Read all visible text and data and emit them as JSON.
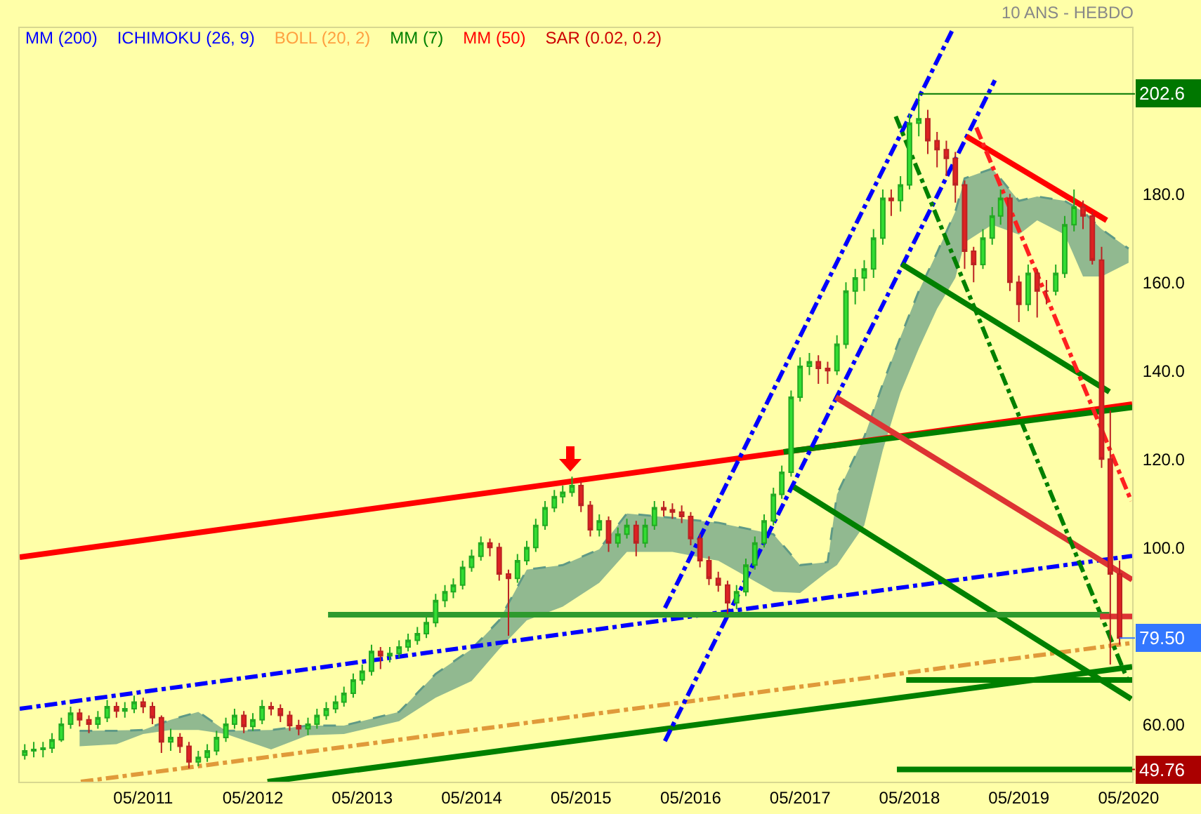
{
  "chart_data": {
    "type": "candlestick",
    "title": "10 ANS - HEBDO",
    "annotations": [
      "MM (200)",
      "ICHIMOKU (26, 9)",
      "BOLL (20, 2)",
      "MM (7)",
      "MM (50)",
      "SAR (0.02, 0.2)",
      {
        "text": "202.6",
        "x": "2018-06",
        "y": 202.6
      },
      {
        "text": "79.50",
        "x": "2020-04",
        "y": 79.5
      },
      {
        "text": "49.76",
        "x": "2020-05-13",
        "y": 49.76
      }
    ],
    "x": [
      "2010-04",
      "2010-05",
      "2010-06",
      "2010-07",
      "2010-08",
      "2010-09",
      "2010-10",
      "2010-11",
      "2010-12",
      "2011-01",
      "2011-02",
      "2011-03",
      "2011-04",
      "2011-05",
      "2011-06",
      "2011-07",
      "2011-08",
      "2011-09",
      "2011-10",
      "2011-11",
      "2011-12",
      "2012-01",
      "2012-02",
      "2012-03",
      "2012-04",
      "2012-05",
      "2012-06",
      "2012-07",
      "2012-08",
      "2012-09",
      "2012-10",
      "2012-11",
      "2012-12",
      "2013-01",
      "2013-02",
      "2013-03",
      "2013-04",
      "2013-05",
      "2013-06",
      "2013-07",
      "2013-08",
      "2013-09",
      "2013-10",
      "2013-11",
      "2013-12",
      "2014-01",
      "2014-02",
      "2014-03",
      "2014-04",
      "2014-05",
      "2014-06",
      "2014-07",
      "2014-08",
      "2014-09",
      "2014-10",
      "2014-11",
      "2014-12",
      "2015-01",
      "2015-02",
      "2015-03",
      "2015-04",
      "2015-05",
      "2015-06",
      "2015-07",
      "2015-08",
      "2015-09",
      "2015-10",
      "2015-11",
      "2015-12",
      "2016-01",
      "2016-02",
      "2016-03",
      "2016-04",
      "2016-05",
      "2016-06",
      "2016-07",
      "2016-08",
      "2016-09",
      "2016-10",
      "2016-11",
      "2016-12",
      "2017-01",
      "2017-02",
      "2017-03",
      "2017-04",
      "2017-05",
      "2017-06",
      "2017-07",
      "2017-08",
      "2017-09",
      "2017-10",
      "2017-11",
      "2017-12",
      "2018-01",
      "2018-02",
      "2018-03",
      "2018-04",
      "2018-05",
      "2018-06",
      "2018-07",
      "2018-08",
      "2018-09",
      "2018-10",
      "2018-11",
      "2018-12",
      "2019-01",
      "2019-02",
      "2019-03",
      "2019-04",
      "2019-05",
      "2019-06",
      "2019-07",
      "2019-08",
      "2019-09",
      "2019-10",
      "2019-11",
      "2019-12",
      "2020-01",
      "2020-02",
      "2020-03",
      "2020-04"
    ],
    "ohlc": [
      [
        53,
        55.5,
        52,
        54
      ],
      [
        54,
        56,
        52.5,
        54.3
      ],
      [
        54.3,
        56,
        52.5,
        54.6
      ],
      [
        54.6,
        58,
        53.5,
        56.5
      ],
      [
        56.5,
        61.5,
        56,
        60
      ],
      [
        60,
        64,
        59,
        62.5
      ],
      [
        62.5,
        63.5,
        59.5,
        61
      ],
      [
        61,
        62,
        58,
        60
      ],
      [
        60,
        63,
        59,
        61.5
      ],
      [
        61.5,
        65.5,
        60.5,
        64
      ],
      [
        64,
        65,
        61.5,
        63
      ],
      [
        63,
        65,
        61.5,
        63.5
      ],
      [
        63.5,
        66.5,
        62.5,
        65
      ],
      [
        65,
        66,
        62.5,
        64
      ],
      [
        64,
        65,
        60,
        61.5
      ],
      [
        61.5,
        62,
        53.5,
        56
      ],
      [
        56,
        59,
        54,
        57
      ],
      [
        57,
        58,
        53.5,
        55
      ],
      [
        55,
        56,
        50,
        51.5
      ],
      [
        51.5,
        54,
        50.5,
        52.5
      ],
      [
        52.5,
        55.5,
        51.5,
        54
      ],
      [
        54,
        58.5,
        53,
        57
      ],
      [
        57,
        61.5,
        56,
        60
      ],
      [
        60,
        63.5,
        59,
        62
      ],
      [
        62,
        63,
        58,
        59.5
      ],
      [
        59.5,
        62.5,
        58.5,
        61
      ],
      [
        61,
        65.5,
        60,
        64
      ],
      [
        64,
        65,
        62,
        63.5
      ],
      [
        63.5,
        64.5,
        60.5,
        62
      ],
      [
        62,
        63,
        58.5,
        59.7
      ],
      [
        59.7,
        61,
        57.5,
        59
      ],
      [
        59,
        61.5,
        57.5,
        60
      ],
      [
        60,
        63.5,
        59,
        62
      ],
      [
        62,
        65,
        61,
        63.5
      ],
      [
        63.5,
        66.5,
        62.5,
        65
      ],
      [
        65,
        68.5,
        64,
        67
      ],
      [
        67,
        71.5,
        66,
        70
      ],
      [
        70,
        73.5,
        69,
        72
      ],
      [
        72,
        78,
        71,
        76.5
      ],
      [
        76.5,
        77.5,
        72.5,
        75.5
      ],
      [
        75.5,
        77.5,
        74,
        76
      ],
      [
        76,
        79,
        75,
        77.5
      ],
      [
        77.5,
        80.5,
        76.5,
        79
      ],
      [
        79,
        82,
        78,
        80.5
      ],
      [
        80.5,
        84.5,
        79.5,
        83
      ],
      [
        83,
        89.5,
        82,
        88
      ],
      [
        88,
        91.5,
        86.5,
        90
      ],
      [
        90,
        93,
        88.5,
        91.5
      ],
      [
        91.5,
        97,
        90.5,
        95.5
      ],
      [
        95.5,
        99.5,
        94.5,
        98
      ],
      [
        98,
        102.5,
        97,
        101
      ],
      [
        101,
        102,
        98,
        100
      ],
      [
        100,
        101,
        92.5,
        94
      ],
      [
        94,
        95,
        80,
        93
      ],
      [
        93,
        98.5,
        92,
        97
      ],
      [
        97,
        101.5,
        96,
        100
      ],
      [
        100,
        106.5,
        99,
        105
      ],
      [
        105,
        110.5,
        104,
        109
      ],
      [
        109,
        113,
        108,
        111.5
      ],
      [
        111.5,
        114,
        110,
        112.5
      ],
      [
        112.5,
        116,
        111.5,
        114
      ],
      [
        114,
        115,
        108,
        109.5
      ],
      [
        109.5,
        110.5,
        102.5,
        104
      ],
      [
        104,
        107.5,
        102.5,
        106
      ],
      [
        106,
        107,
        99,
        101
      ],
      [
        101,
        104.5,
        100,
        103
      ],
      [
        103,
        106.5,
        102,
        105
      ],
      [
        105,
        106,
        98,
        101
      ],
      [
        101,
        106.5,
        100,
        105
      ],
      [
        105,
        110.5,
        104,
        109
      ],
      [
        109,
        110.5,
        107,
        108.5
      ],
      [
        108.5,
        110,
        106.5,
        108
      ],
      [
        108,
        109.5,
        105.5,
        107
      ],
      [
        107,
        108,
        100.5,
        102
      ],
      [
        102,
        103,
        95.5,
        97
      ],
      [
        97,
        98,
        91.5,
        93
      ],
      [
        93,
        94.5,
        90,
        91.5
      ],
      [
        91.5,
        92.5,
        85,
        87.5
      ],
      [
        87.5,
        91.5,
        86,
        90
      ],
      [
        90,
        97.5,
        89,
        96
      ],
      [
        96,
        102.5,
        95,
        101
      ],
      [
        101,
        107.5,
        100,
        106
      ],
      [
        106,
        113.5,
        105,
        112
      ],
      [
        112,
        118.5,
        111,
        117
      ],
      [
        117,
        135.5,
        116,
        134
      ],
      [
        134,
        143,
        133,
        141
      ],
      [
        141,
        144,
        139,
        142
      ],
      [
        142,
        143.5,
        137,
        140.5
      ],
      [
        140.5,
        142,
        137,
        140
      ],
      [
        140,
        148,
        139,
        146
      ],
      [
        146,
        160,
        145,
        158
      ],
      [
        158,
        163,
        155,
        161
      ],
      [
        161,
        165,
        158,
        163
      ],
      [
        163,
        172,
        161,
        170
      ],
      [
        170,
        181,
        168.5,
        179
      ],
      [
        179,
        181,
        175,
        178.5
      ],
      [
        178.5,
        184,
        176,
        182
      ],
      [
        182,
        198,
        181,
        196
      ],
      [
        196,
        202.6,
        193,
        197
      ],
      [
        197,
        199,
        189,
        192
      ],
      [
        192,
        194,
        186,
        190
      ],
      [
        190,
        192,
        184,
        188
      ],
      [
        188,
        189.5,
        178,
        182
      ],
      [
        182,
        183,
        163,
        167
      ],
      [
        167,
        168,
        160,
        164
      ],
      [
        164,
        172,
        163,
        170
      ],
      [
        170,
        177,
        168.5,
        175
      ],
      [
        175,
        181,
        173,
        179
      ],
      [
        179,
        180,
        158,
        160
      ],
      [
        160,
        161.5,
        151,
        155
      ],
      [
        155,
        164,
        153.5,
        162
      ],
      [
        162,
        163,
        152,
        158
      ],
      [
        158,
        160.5,
        155,
        158
      ],
      [
        158,
        164,
        157,
        162
      ],
      [
        162,
        175,
        161,
        173
      ],
      [
        173,
        181,
        171.5,
        177
      ],
      [
        177,
        178.5,
        172,
        175
      ],
      [
        175,
        176,
        164,
        165
      ],
      [
        165,
        168,
        118,
        120
      ],
      [
        120,
        131,
        73.5,
        94
      ],
      [
        94,
        97,
        78,
        79.5
      ]
    ],
    "series": [
      {
        "type": "line",
        "color": "#5f9a86",
        "line_style": "dashed",
        "x": [
          "2010-10",
          "2011-02",
          "2011-05",
          "2011-08",
          "2011-11",
          "2012-02",
          "2012-07",
          "2012-11",
          "2013-03",
          "2013-09",
          "2014-01",
          "2014-05",
          "2014-08",
          "2014-11",
          "2015-03",
          "2015-07",
          "2015-10",
          "2016-03",
          "2016-08",
          "2017-02",
          "2017-05",
          "2017-08",
          "2017-09",
          "2017-12",
          "2018-02",
          "2018-04",
          "2018-06",
          "2018-08",
          "2018-10",
          "2018-11",
          "2019-02",
          "2019-05",
          "2019-07",
          "2019-10",
          "2019-12",
          "2020-02",
          "2020-05"
        ],
        "values": [
          58.5,
          58.5,
          58.7,
          61,
          62.8,
          58.5,
          58.7,
          59.7,
          59.7,
          62.8,
          71.4,
          77,
          83.5,
          95,
          96,
          99.6,
          107.7,
          106.7,
          105.6,
          103,
          96,
          96.7,
          112,
          125,
          137,
          147.6,
          158,
          166.7,
          176,
          183.5,
          185.7,
          178.4,
          179.4,
          178.4,
          176,
          172,
          167.6
        ],
        "upper": [
          58.5,
          58.5,
          58.7,
          61,
          62.8,
          58.5,
          58.7,
          59.7,
          59.7,
          62.8,
          71.4,
          77,
          83.5,
          95,
          96,
          99.6,
          107.7,
          106.7,
          105.6,
          103,
          96,
          96.7,
          112,
          125,
          137,
          147.6,
          158,
          166.7,
          176,
          183.5,
          185.7,
          178.4,
          179.4,
          178.4,
          176,
          172,
          167.6
        ],
        "lower": [
          55,
          55.5,
          57.8,
          58.7,
          58.7,
          57.8,
          54.3,
          57.5,
          57.8,
          60.7,
          66,
          69.8,
          77,
          83.5,
          86.6,
          92,
          99,
          99,
          97,
          90,
          89.7,
          94.6,
          96,
          105,
          122,
          135,
          145,
          154,
          161,
          169,
          173,
          170.8,
          174,
          170.8,
          161.3,
          161.3,
          164.4
        ]
      },
      {
        "type": "line",
        "color": "#ff0000",
        "line_style": "solid",
        "x": [
          "2010-03-15",
          "2020-05-13"
        ],
        "values": [
          97.8,
          132.4
        ]
      },
      {
        "type": "line",
        "color": "#008000",
        "line_style": "solid",
        "x": [
          "2017-03-07",
          "2020-05-13"
        ],
        "values": [
          121.6,
          131.7
        ]
      },
      {
        "type": "line",
        "color": "#008000",
        "line_style": "solid",
        "x": [
          "2012-06-19",
          "2020-05-13"
        ],
        "values": [
          47,
          73
        ]
      },
      {
        "type": "line",
        "color": "#e09a3a",
        "line_style": "dashed",
        "x": [
          "2010-10-05",
          "2020-05-13"
        ],
        "values": [
          47,
          78.4
        ]
      },
      {
        "type": "line",
        "color": "#0000ff",
        "line_style": "dashed",
        "x": [
          "2010-03-15",
          "2020-05-13"
        ],
        "values": [
          63.5,
          98.1
        ]
      },
      {
        "type": "line",
        "color": "#0000ff",
        "line_style": "dashed",
        "x": [
          "2016-02-05",
          "2018-09-21"
        ],
        "values": [
          86.3,
          217
        ]
      },
      {
        "type": "line",
        "color": "#0000ff",
        "line_style": "dashed",
        "x": [
          "2016-02-05",
          "2019-02-10"
        ],
        "values": [
          56.2,
          205.7
        ]
      },
      {
        "type": "line",
        "color": "#008000",
        "line_style": "solid",
        "x": [
          "2018-04-05",
          "2020-02-27"
        ],
        "values": [
          164.1,
          135.2
        ]
      },
      {
        "type": "line",
        "color": "#008000",
        "line_style": "solid",
        "x": [
          "2017-04-10",
          "2020-05-10"
        ],
        "values": [
          113.7,
          65.7
        ]
      },
      {
        "type": "line",
        "color": "#ff0000",
        "line_style": "solid",
        "x": [
          "2018-11-07",
          "2020-02-18"
        ],
        "values": [
          193,
          174
        ]
      },
      {
        "type": "line",
        "color": "#dd3333",
        "line_style": "solid",
        "x": [
          "2017-08-28",
          "2020-05-13"
        ],
        "values": [
          134,
          92.7
        ]
      },
      {
        "type": "line",
        "color": "#ff2020",
        "line_style": "dashed",
        "x": [
          "2018-12-10",
          "2020-05-10"
        ],
        "values": [
          195,
          110.5
        ]
      },
      {
        "type": "line",
        "color": "#008000",
        "line_style": "dashed",
        "x": [
          "2018-03-16",
          "2020-04-25"
        ],
        "values": [
          197.5,
          70.5
        ]
      },
      {
        "type": "line",
        "color": "#2e9a2e",
        "line_style": "solid",
        "x": [
          "2013-01-07",
          "2020-02-27"
        ],
        "values": [
          84.8,
          84.8
        ]
      },
      {
        "type": "line",
        "color": "#008000",
        "line_style": "solid",
        "x": [
          "2018-04-20",
          "2020-05-13"
        ],
        "values": [
          70,
          70
        ]
      },
      {
        "type": "line",
        "color": "#008000",
        "line_style": "solid",
        "x": [
          "2018-03-20",
          "2020-05-13"
        ],
        "values": [
          49.76,
          49.76
        ]
      },
      {
        "type": "line",
        "color": "#dd3333",
        "line_style": "solid",
        "x": [
          "2020-01-27",
          "2020-05-13"
        ],
        "values": [
          84.4,
          84.4
        ]
      }
    ],
    "xlim": [
      "2010-03-15",
      "2020-05-13"
    ],
    "xticks": [
      {
        "value": "2011-05",
        "label": "05/2011"
      },
      {
        "value": "2012-05",
        "label": "05/2012"
      },
      {
        "value": "2013-05",
        "label": "05/2013"
      },
      {
        "value": "2014-05",
        "label": "05/2014"
      },
      {
        "value": "2015-05",
        "label": "05/2015"
      },
      {
        "value": "2016-05",
        "label": "05/2016"
      },
      {
        "value": "2017-05",
        "label": "05/2017"
      },
      {
        "value": "2018-05",
        "label": "05/2018"
      },
      {
        "value": "2019-05",
        "label": "05/2019"
      },
      {
        "value": "2020-05",
        "label": "05/2020"
      }
    ],
    "ylim": [
      47,
      217.5
    ],
    "yticks": [
      {
        "value": 60,
        "label": "60.00"
      },
      {
        "value": 80,
        "label": null
      },
      {
        "value": 100,
        "label": "100.0"
      },
      {
        "value": 120,
        "label": "120.0"
      },
      {
        "value": 140,
        "label": "140.0"
      },
      {
        "value": 160,
        "label": "160.0"
      },
      {
        "value": 180,
        "label": "180.0"
      }
    ]
  }
}
